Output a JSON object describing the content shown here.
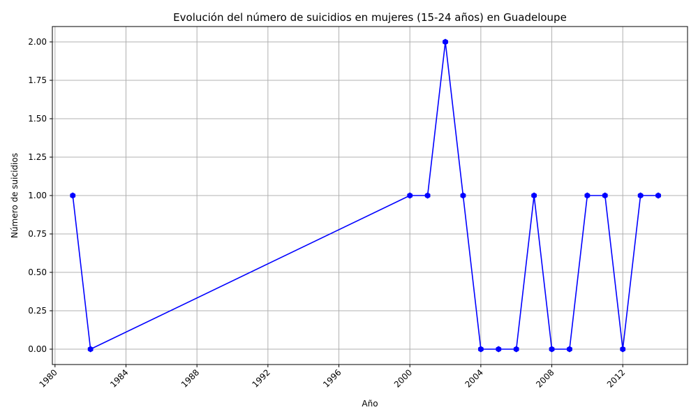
{
  "chart_data": {
    "type": "line",
    "title": "Evolución del número de suicidios en mujeres (15-24 años) en Guadeloupe",
    "xlabel": "Año",
    "ylabel": "Número de suicidios",
    "x": [
      1981,
      1982,
      2000,
      2001,
      2002,
      2003,
      2004,
      2005,
      2006,
      2007,
      2008,
      2009,
      2010,
      2011,
      2012,
      2013,
      2014
    ],
    "series": [
      {
        "values": [
          1,
          0,
          1,
          1,
          2,
          1,
          0,
          0,
          0,
          1,
          0,
          0,
          1,
          1,
          0,
          1,
          1
        ],
        "color": "#0000ff",
        "marker": "hexagon"
      }
    ],
    "xlim": [
      1979.85,
      2015.65
    ],
    "ylim": [
      -0.1,
      2.1
    ],
    "xticks": [
      1980,
      1984,
      1988,
      1992,
      1996,
      2000,
      2004,
      2008,
      2012
    ],
    "xtick_labels": [
      "1980",
      "1984",
      "1988",
      "1992",
      "1996",
      "2000",
      "2004",
      "2008",
      "2012"
    ],
    "yticks": [
      0,
      0.25,
      0.5,
      0.75,
      1.0,
      1.25,
      1.5,
      1.75,
      2.0
    ],
    "ytick_labels": [
      "0.00",
      "0.25",
      "0.50",
      "0.75",
      "1.00",
      "1.25",
      "1.50",
      "1.75",
      "2.00"
    ],
    "grid": true,
    "grid_color": "#b0b0b0",
    "xtick_rotation": 45
  }
}
